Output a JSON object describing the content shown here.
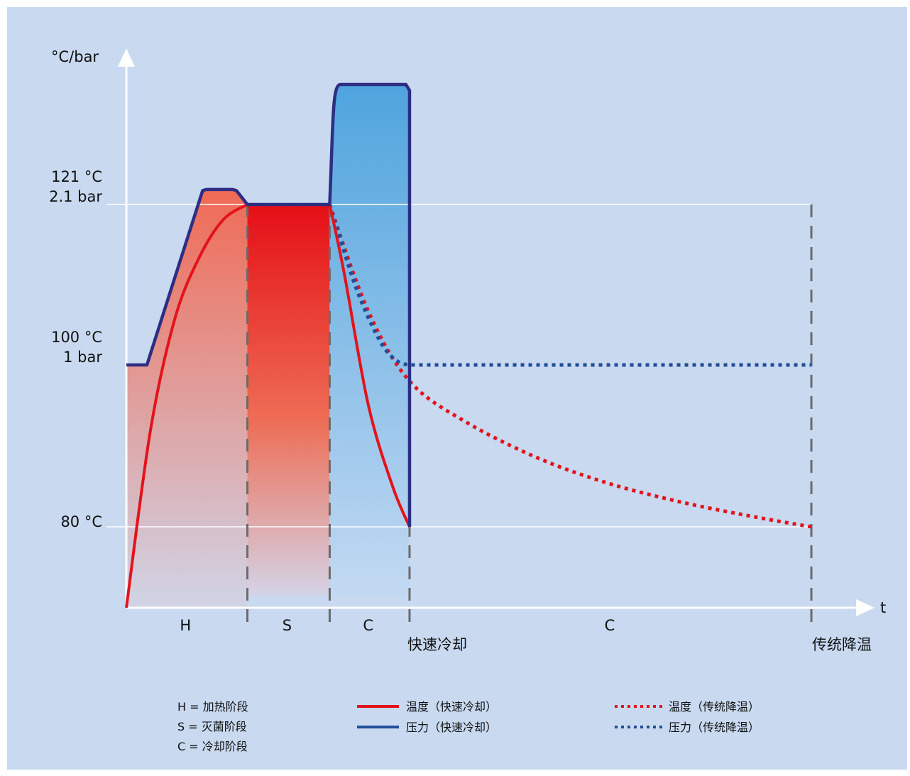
{
  "chart_data": {
    "type": "line",
    "title": "",
    "ylabel": "°C/bar",
    "xlabel": "t",
    "y_ticks": [
      {
        "line1": "121 °C",
        "line2": "2.1 bar",
        "value": 121
      },
      {
        "line1": "100 °C",
        "line2": "1 bar",
        "value": 100
      },
      {
        "line1": "80 °C",
        "line2": "",
        "value": 80
      }
    ],
    "phases": [
      {
        "label": "H",
        "start": 0,
        "end": 5
      },
      {
        "label": "S",
        "start": 5,
        "end": 8.4
      },
      {
        "label": "C",
        "start": 8.4,
        "end": 11.7
      },
      {
        "label": "C",
        "start": 11.7,
        "end": 28.3
      }
    ],
    "markers": [
      {
        "label": "快速冷却",
        "t": 11.7
      },
      {
        "label": "传统降温",
        "t": 28.3
      }
    ],
    "series": [
      {
        "name": "温度（快速冷却）",
        "style": "solid",
        "color": "#e3131b",
        "points": [
          [
            0,
            70
          ],
          [
            1,
            92
          ],
          [
            2,
            106
          ],
          [
            3,
            114
          ],
          [
            4,
            119
          ],
          [
            5,
            121
          ],
          [
            8.4,
            121
          ],
          [
            9,
            112
          ],
          [
            10,
            95
          ],
          [
            11,
            85
          ],
          [
            11.7,
            80
          ]
        ]
      },
      {
        "name": "压力（快速冷却）",
        "style": "solid",
        "color": "#2d2e83",
        "points": [
          [
            0,
            100
          ],
          [
            0.9,
            100
          ],
          [
            3.2,
            123.5
          ],
          [
            4.5,
            123.5
          ],
          [
            5,
            121
          ],
          [
            8.4,
            121
          ],
          [
            8.7,
            141
          ],
          [
            11.7,
            141
          ],
          [
            11.7,
            80
          ]
        ]
      },
      {
        "name": "温度（传统降温）",
        "style": "dotted",
        "color": "#e3131b",
        "points": [
          [
            8.4,
            121
          ],
          [
            10,
            107
          ],
          [
            11.7,
            98
          ],
          [
            14,
            93
          ],
          [
            17,
            88.5
          ],
          [
            20,
            85.3
          ],
          [
            23,
            83
          ],
          [
            26,
            81.2
          ],
          [
            28.3,
            80
          ]
        ]
      },
      {
        "name": "压力（传统降温）",
        "style": "dotted",
        "color": "#2d2e83",
        "points": [
          [
            8.4,
            121
          ],
          [
            9.5,
            110
          ],
          [
            10.5,
            103
          ],
          [
            11.2,
            100.5
          ],
          [
            11.7,
            100
          ],
          [
            28.3,
            100
          ]
        ]
      }
    ],
    "legend": {
      "phase_keys": [
        "H = 加热阶段",
        "S = 灭菌阶段",
        "C = 冷却阶段"
      ],
      "series_labels": [
        "温度（快速冷却）",
        "压力（快速冷却）",
        "温度（传统降温）",
        "压力（传统降温）"
      ]
    },
    "colors": {
      "background": "#c8d9f0",
      "temperature": "#e3131b",
      "pressure": "#2d2e83",
      "pressure_dotted": "#1f4e9a",
      "cooling_fill": "#57a7df",
      "heating_fill": "#f07e68"
    }
  }
}
